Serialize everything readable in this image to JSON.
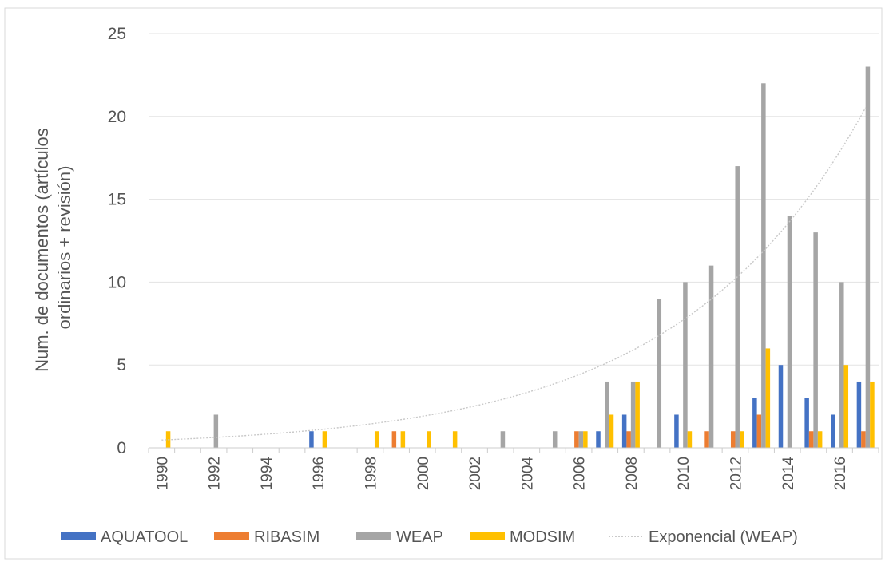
{
  "chart_data": {
    "type": "bar",
    "title": "",
    "xlabel": "",
    "ylabel_lines": [
      "Num. de documentos (artículos",
      "ordinarios + revisión)"
    ],
    "ylim": [
      0,
      25
    ],
    "yticks": [
      0,
      5,
      10,
      15,
      20,
      25
    ],
    "grid": true,
    "legend_position": "bottom",
    "categories": [
      1990,
      1991,
      1992,
      1993,
      1994,
      1995,
      1996,
      1997,
      1998,
      1999,
      2000,
      2001,
      2002,
      2003,
      2004,
      2005,
      2006,
      2007,
      2008,
      2009,
      2010,
      2011,
      2012,
      2013,
      2014,
      2015,
      2016,
      2017
    ],
    "xtick_labels": [
      "1990",
      "1992",
      "1994",
      "1996",
      "1998",
      "2000",
      "2002",
      "2004",
      "2006",
      "2008",
      "2010",
      "2012",
      "2014",
      "2016"
    ],
    "series": [
      {
        "name": "AQUATOOL",
        "color": "#4472C4",
        "values": [
          0,
          0,
          0,
          0,
          0,
          0,
          1,
          0,
          0,
          0,
          0,
          0,
          0,
          0,
          0,
          0,
          0,
          1,
          2,
          0,
          2,
          0,
          0,
          3,
          5,
          3,
          2,
          4
        ]
      },
      {
        "name": "RIBASIM",
        "color": "#ED7D31",
        "values": [
          0,
          0,
          0,
          0,
          0,
          0,
          0,
          0,
          0,
          1,
          0,
          0,
          0,
          0,
          0,
          0,
          1,
          0,
          1,
          0,
          0,
          1,
          1,
          2,
          0,
          1,
          0,
          1
        ]
      },
      {
        "name": "WEAP",
        "color": "#A5A5A5",
        "values": [
          0,
          0,
          2,
          0,
          0,
          0,
          0,
          0,
          0,
          0,
          0,
          0,
          0,
          1,
          0,
          1,
          1,
          4,
          4,
          9,
          10,
          11,
          17,
          22,
          14,
          13,
          10,
          23
        ]
      },
      {
        "name": "MODSIM",
        "color": "#FFC000",
        "values": [
          1,
          0,
          0,
          0,
          0,
          0,
          1,
          0,
          1,
          1,
          1,
          1,
          0,
          0,
          0,
          0,
          1,
          2,
          4,
          0,
          1,
          0,
          1,
          6,
          0,
          1,
          5,
          4
        ]
      }
    ],
    "trendline": {
      "name": "Exponencial (WEAP)",
      "of_series": "WEAP",
      "kind": "exponential",
      "a": 0.4095,
      "b": 0.1398,
      "color": "#C8C8C8"
    }
  }
}
